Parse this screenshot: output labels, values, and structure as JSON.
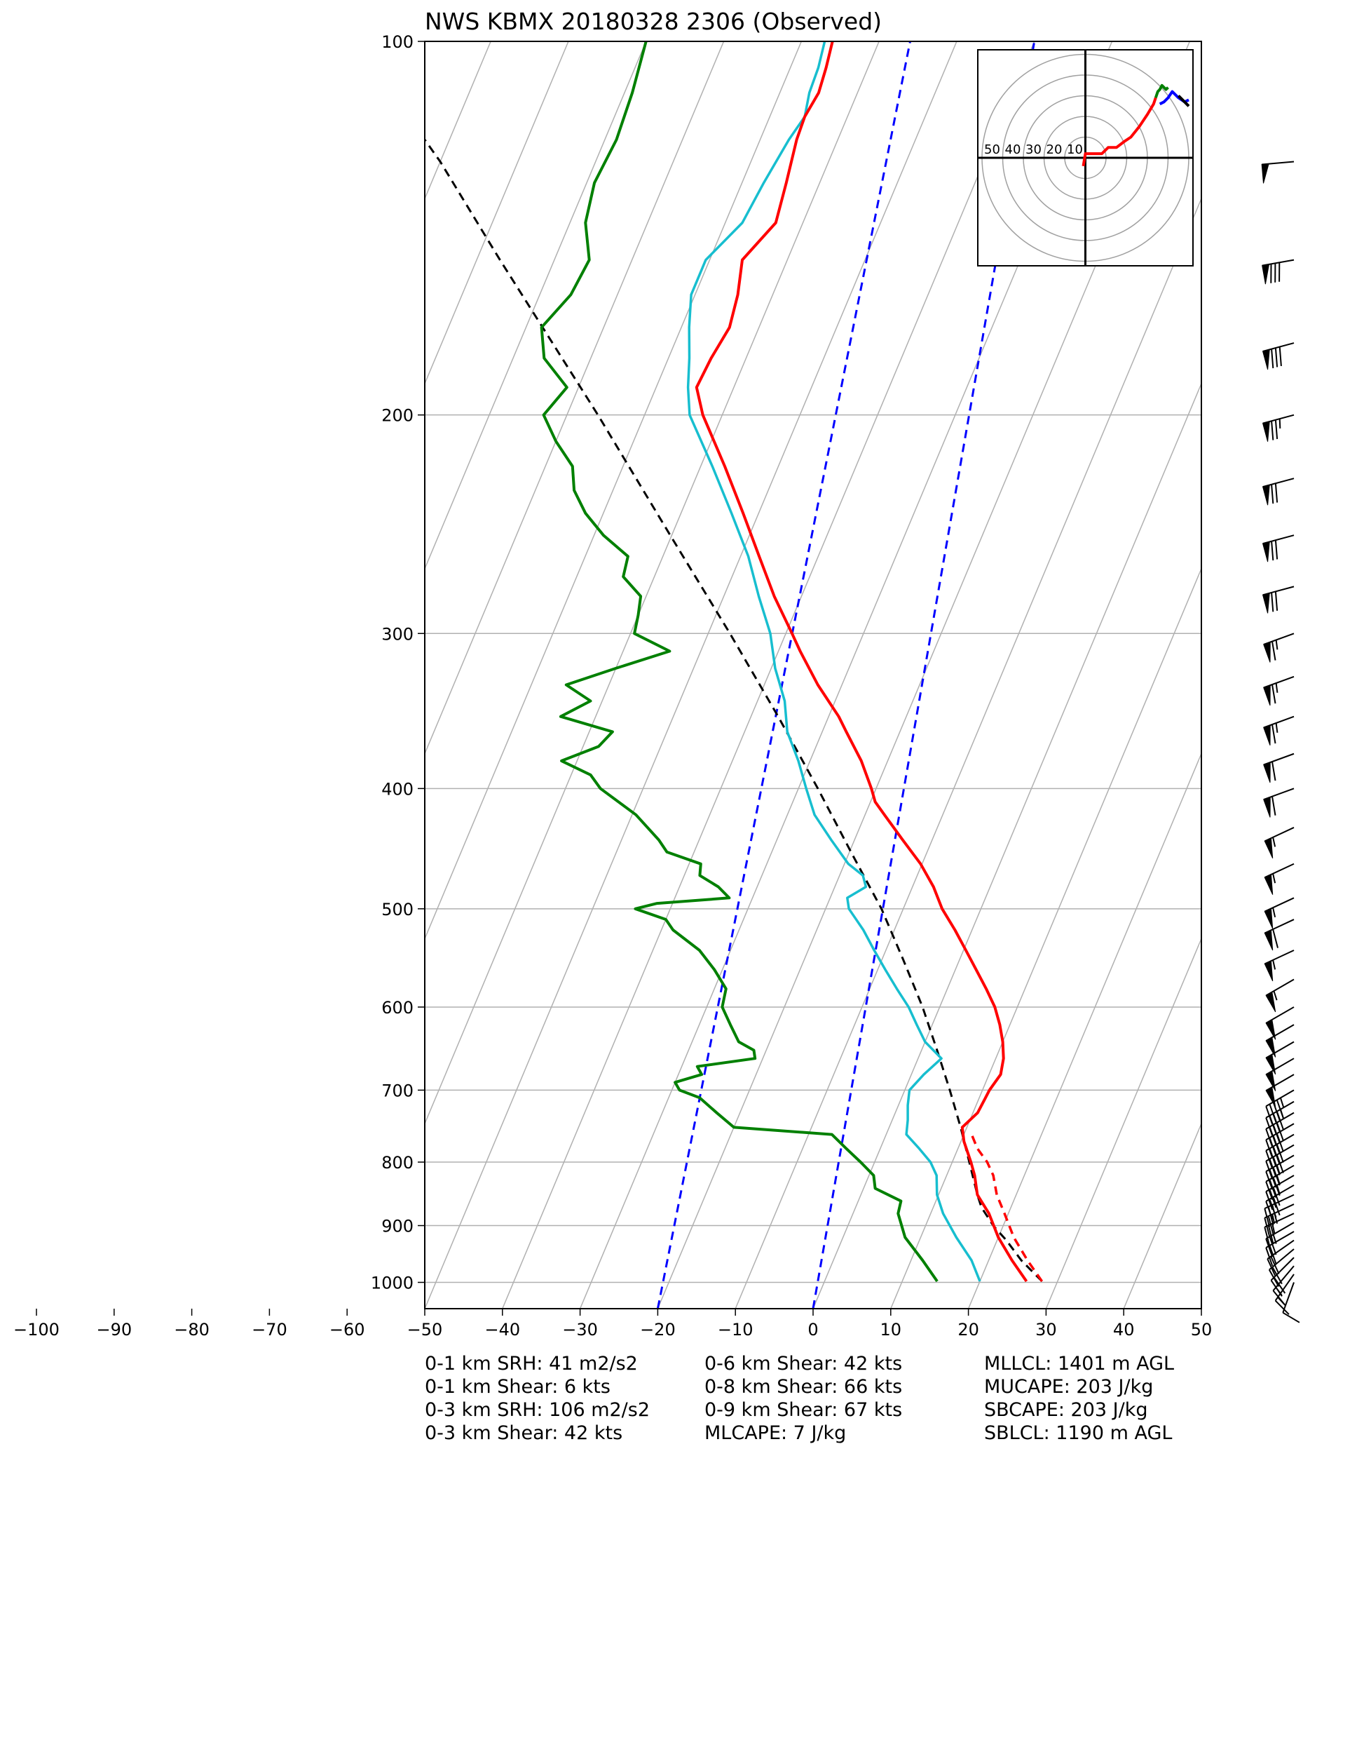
{
  "title": "NWS KBMX 20180328 2306   (Observed)",
  "chart_data": {
    "type": "skew-t",
    "y_axis": {
      "scale": "log",
      "unit": "hPa",
      "range": [
        1050,
        100
      ],
      "ticks": [
        100,
        200,
        300,
        400,
        500,
        600,
        700,
        800,
        900,
        1000
      ]
    },
    "x_axis": {
      "unit": "degC",
      "range": [
        -100,
        50
      ],
      "ticks": [
        -100,
        -90,
        -80,
        -70,
        -60,
        -50,
        -40,
        -30,
        -20,
        -10,
        0,
        10,
        20,
        30,
        40,
        50
      ]
    },
    "isotherm_skew_degC": [
      -150,
      -140,
      -130,
      -120,
      -110,
      -100,
      -90,
      -80,
      -70,
      -60,
      -50,
      -40,
      -30,
      -20,
      -10,
      0,
      10,
      20,
      30,
      40,
      50
    ],
    "temperature": {
      "color": "#ff0000",
      "p": [
        998,
        960,
        920,
        880,
        850,
        820,
        800,
        770,
        750,
        730,
        710,
        700,
        680,
        660,
        640,
        620,
        600,
        580,
        560,
        540,
        520,
        500,
        480,
        460,
        440,
        420,
        410,
        400,
        380,
        360,
        350,
        330,
        310,
        300,
        280,
        260,
        240,
        220,
        200,
        190,
        180,
        170,
        160,
        150,
        140,
        130,
        120,
        115,
        110,
        105,
        100
      ],
      "t": [
        26,
        23,
        20,
        17.5,
        15,
        13.6,
        12.4,
        10.4,
        9.4,
        10.6,
        10.8,
        10.9,
        11.5,
        11,
        10,
        8.7,
        7.1,
        5,
        2.7,
        0.3,
        -2.2,
        -5,
        -7.3,
        -10.2,
        -13.8,
        -17.5,
        -19.4,
        -20.6,
        -23.4,
        -26.9,
        -28.7,
        -33.1,
        -37.2,
        -39.2,
        -43.5,
        -47.6,
        -52,
        -56.9,
        -62.5,
        -64.8,
        -64.5,
        -63.8,
        -64.5,
        -65.8,
        -63.5,
        -64.3,
        -65.3,
        -65.5,
        -65,
        -65.4,
        -66
      ]
    },
    "temperature_parcel_dashed": {
      "color": "#ff0000",
      "p": [
        998,
        960,
        920,
        880,
        850,
        820,
        800,
        780,
        760
      ],
      "t": [
        28,
        25,
        22,
        19.5,
        17.5,
        16,
        14.5,
        12.5,
        11
      ]
    },
    "dewpoint_cyan": {
      "color": "#17becf",
      "p": [
        998,
        960,
        920,
        880,
        850,
        820,
        800,
        780,
        760,
        740,
        720,
        700,
        680,
        660,
        640,
        620,
        600,
        580,
        560,
        540,
        520,
        500,
        490,
        480,
        470,
        460,
        440,
        420,
        400,
        380,
        360,
        340,
        320,
        300,
        280,
        260,
        240,
        220,
        200,
        190,
        180,
        170,
        160,
        150,
        140,
        130,
        120,
        115,
        110,
        105,
        100
      ],
      "t": [
        20,
        17.8,
        14.6,
        11.6,
        9.8,
        8.7,
        7.2,
        5,
        2.6,
        2,
        1.2,
        0.6,
        1.6,
        3,
        0,
        -2,
        -4,
        -6.5,
        -9,
        -11.5,
        -14,
        -17,
        -17.8,
        -16,
        -17,
        -19.5,
        -23,
        -26.5,
        -29,
        -31.5,
        -34.5,
        -36.5,
        -39.5,
        -42,
        -45.5,
        -49,
        -53.5,
        -58.5,
        -64.2,
        -65.9,
        -67.3,
        -69,
        -70.5,
        -70.5,
        -67.8,
        -67.2,
        -66.3,
        -65.5,
        -66.2,
        -66.4,
        -67
      ]
    },
    "dewpoint_green": {
      "color": "#008000",
      "p": [
        998,
        960,
        920,
        880,
        860,
        840,
        820,
        800,
        780,
        760,
        750,
        730,
        710,
        700,
        690,
        680,
        670,
        660,
        650,
        640,
        620,
        600,
        580,
        560,
        540,
        520,
        510,
        500,
        495,
        490,
        480,
        470,
        460,
        450,
        440,
        420,
        400,
        390,
        380,
        370,
        360,
        350,
        340,
        330,
        320,
        310,
        300,
        290,
        280,
        270,
        260,
        250,
        240,
        230,
        220,
        210,
        200,
        190,
        180,
        170,
        160,
        150,
        140,
        130,
        120,
        110,
        100
      ],
      "t": [
        14.5,
        11.5,
        8,
        5.8,
        5.5,
        1.5,
        0.6,
        -1.8,
        -4.4,
        -7,
        -20,
        -23,
        -26,
        -29,
        -30,
        -27,
        -28,
        -21,
        -21.6,
        -24,
        -26,
        -28,
        -28.5,
        -31,
        -34,
        -38.5,
        -40,
        -44.5,
        -42,
        -33,
        -35,
        -38,
        -38.5,
        -43.5,
        -45.2,
        -49.5,
        -55.5,
        -57.5,
        -62,
        -58,
        -57,
        -64.5,
        -61.5,
        -65.5,
        -60,
        -54,
        -59.5,
        -60,
        -60.7,
        -64,
        -64.5,
        -68.8,
        -72.3,
        -75,
        -76.5,
        -80,
        -83,
        -81.5,
        -86,
        -88,
        -86,
        -85.5,
        -88,
        -89,
        -88.5,
        -89,
        -90
      ]
    },
    "parcel_path_black_dashed": {
      "color": "#000000",
      "p": [
        998,
        960,
        925,
        900,
        870,
        850,
        800,
        750,
        700,
        650,
        600,
        550,
        500,
        450,
        400,
        350,
        300,
        250,
        200,
        150,
        125,
        110,
        100
      ],
      "t": [
        28,
        24.2,
        21.2,
        18.7,
        16.2,
        15,
        12.2,
        9.2,
        5.8,
        2,
        -2.2,
        -7.2,
        -12.8,
        -19.8,
        -27.5,
        -36.5,
        -47.2,
        -60.2,
        -76,
        -97,
        -110,
        -120,
        -127
      ]
    },
    "reference_blue_dashed": [
      {
        "color": "#0000ff",
        "p": [
          1050,
          100
        ],
        "t": [
          -20,
          -56
        ]
      },
      {
        "color": "#0000ff",
        "p": [
          1050,
          100
        ],
        "t": [
          0,
          -40
        ]
      }
    ],
    "hodograph": {
      "range_rings_kts": [
        10,
        20,
        30,
        40,
        50
      ],
      "ring_labels": [
        "50",
        "40",
        "30",
        "20",
        "10"
      ],
      "segments": [
        {
          "color": "#ff0000",
          "points": [
            [
              -1,
              -4
            ],
            [
              0,
              2
            ],
            [
              3,
              2
            ],
            [
              8,
              2
            ],
            [
              11,
              5
            ],
            [
              15,
              5
            ],
            [
              19,
              8
            ],
            [
              22,
              10
            ],
            [
              26,
              15
            ],
            [
              30,
              21
            ],
            [
              33,
              26
            ],
            [
              34,
              29
            ]
          ]
        },
        {
          "color": "#008000",
          "points": [
            [
              34,
              29
            ],
            [
              35,
              32
            ],
            [
              36,
              33
            ],
            [
              37,
              35
            ],
            [
              39,
              33
            ],
            [
              40,
              34
            ]
          ]
        },
        {
          "color": "#0000ff",
          "points": [
            [
              36,
              26
            ],
            [
              38,
              27
            ],
            [
              40,
              29
            ],
            [
              42,
              32
            ],
            [
              45,
              29
            ],
            [
              48,
              27
            ],
            [
              50,
              28
            ]
          ]
        },
        {
          "color": "#000000",
          "points": [
            [
              45,
              30
            ],
            [
              47,
              28
            ],
            [
              49,
              26
            ],
            [
              50,
              25
            ]
          ]
        }
      ]
    },
    "wind_barbs": {
      "p": [
        1000,
        985,
        970,
        955,
        940,
        925,
        910,
        895,
        880,
        865,
        850,
        835,
        820,
        805,
        790,
        775,
        760,
        745,
        730,
        715,
        700,
        680,
        660,
        640,
        620,
        600,
        570,
        540,
        510,
        490,
        460,
        430,
        400,
        375,
        350,
        325,
        300,
        275,
        250,
        225,
        200,
        175,
        150,
        125
      ],
      "direction_deg": [
        200,
        215,
        220,
        225,
        230,
        235,
        240,
        240,
        245,
        245,
        245,
        240,
        240,
        240,
        240,
        240,
        240,
        240,
        240,
        240,
        240,
        240,
        240,
        240,
        240,
        240,
        240,
        245,
        245,
        245,
        245,
        245,
        250,
        250,
        250,
        250,
        250,
        255,
        255,
        255,
        255,
        255,
        260,
        265
      ],
      "speed_kts": [
        10,
        15,
        15,
        20,
        20,
        20,
        20,
        25,
        25,
        25,
        30,
        30,
        35,
        35,
        35,
        40,
        40,
        40,
        40,
        45,
        45,
        50,
        50,
        50,
        50,
        50,
        55,
        55,
        60,
        55,
        55,
        55,
        60,
        60,
        65,
        65,
        65,
        70,
        70,
        70,
        75,
        80,
        80,
        50
      ]
    }
  },
  "stats": {
    "col1": [
      "0-1 km SRH: 41 m2/s2",
      "0-1 km Shear: 6 kts",
      "0-3 km SRH: 106 m2/s2",
      "0-3 km Shear: 42 kts"
    ],
    "col2": [
      "0-6 km Shear: 42 kts",
      "0-8 km Shear: 66 kts",
      "0-9 km Shear: 67 kts",
      "MLCAPE: 7 J/kg"
    ],
    "col3": [
      "MLLCL: 1401 m AGL",
      "MUCAPE: 203 J/kg",
      "SBCAPE: 203 J/kg",
      "SBLCL: 1190 m AGL"
    ]
  }
}
